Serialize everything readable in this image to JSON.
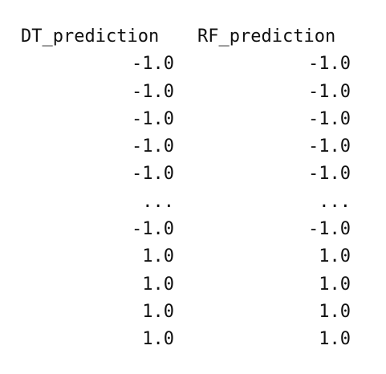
{
  "columns": [
    "DT_prediction",
    "RF_prediction"
  ],
  "rows": [
    [
      "-1.0",
      "-1.0"
    ],
    [
      "-1.0",
      "-1.0"
    ],
    [
      "-1.0",
      "-1.0"
    ],
    [
      "-1.0",
      "-1.0"
    ],
    [
      "-1.0",
      "-1.0"
    ],
    [
      "...",
      "..."
    ],
    [
      "-1.0",
      "-1.0"
    ],
    [
      "1.0",
      "1.0"
    ],
    [
      "1.0",
      "1.0"
    ],
    [
      "1.0",
      "1.0"
    ],
    [
      "1.0",
      "1.0"
    ]
  ]
}
